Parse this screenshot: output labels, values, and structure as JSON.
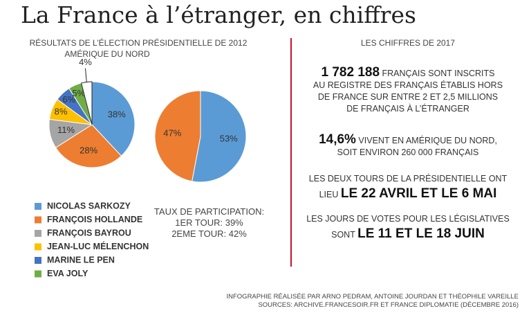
{
  "header": {
    "title": "La France à l’étranger, en chiffres"
  },
  "chart_data": [
    {
      "type": "pie",
      "title": "RÉSULTATS DE L’ÉLECTION PRÉSIDENTIELLE DE 2012",
      "subtitle": "AMÉRIQUE DU NORD",
      "categories": [
        "NICOLAS SARKOZY",
        "FRANÇOIS HOLLANDE",
        "FRANÇOIS BAYROU",
        "JEAN-LUC MÉLENCHON",
        "MARINE LE PEN",
        "EVA JOLY",
        null
      ],
      "values": [
        38,
        28,
        11,
        8,
        6,
        5,
        4
      ],
      "value_labels": [
        "38%",
        "28%",
        "11%",
        "8%",
        "6%",
        "5%",
        "4%"
      ],
      "colors": [
        "#5b9bd5",
        "#ed7d31",
        "#a5a5a5",
        "#ffc000",
        "#4472c4",
        "#70ad47",
        "#ffffff"
      ]
    },
    {
      "type": "pie",
      "categories": [
        null,
        null
      ],
      "values": [
        53,
        47
      ],
      "value_labels": [
        "53%",
        "47%"
      ],
      "colors": [
        "#5b9bd5",
        "#ed7d31"
      ]
    }
  ],
  "participation": {
    "title": "TAUX DE PARTICIPATION:",
    "rows": [
      "1ER TOUR: 39%",
      "2EME TOUR: 42%"
    ]
  },
  "facts": {
    "title": "LES CHIFFRES DE 2017",
    "items": [
      {
        "highlight": "1 782 188",
        "lines": [
          "FRANÇAIS SONT INSCRITS",
          "AU REGISTRE DES FRANÇAIS ÉTABLIS HORS",
          "DE FRANCE SUR ENTRE 2 ET 2,5 MILLIONS",
          "DE FRANÇAIS À L’ÉTRANGER"
        ]
      },
      {
        "highlight": "14,6%",
        "lines": [
          "VIVENT EN AMÉRIQUE DU NORD,",
          "SOIT ENVIRON 260 000 FRANÇAIS"
        ]
      },
      {
        "lines": [
          "LES DEUX TOURS DE LA PRÉSIDENTIELLE ONT",
          "LIEU"
        ],
        "highlight": "LE 22 AVRIL ET LE 6 MAI"
      },
      {
        "lines": [
          "LES JOURS DE VOTES POUR LES LÉGISLATIVES",
          "SONT"
        ],
        "highlight": "LE 11 ET LE 18 JUIN"
      }
    ]
  },
  "footer": {
    "lines": [
      "INFOGRAPHIE RÉALISÉE PAR ARNO PEDRAM, ANTOINE JOURDAN ET THÉOPHILE VAREILLE",
      "SOURCES: ARCHIVE.FRANCESOIR.FR ET FRANCE DIPLOMATIE (DÉCEMBRE 2016)"
    ]
  }
}
